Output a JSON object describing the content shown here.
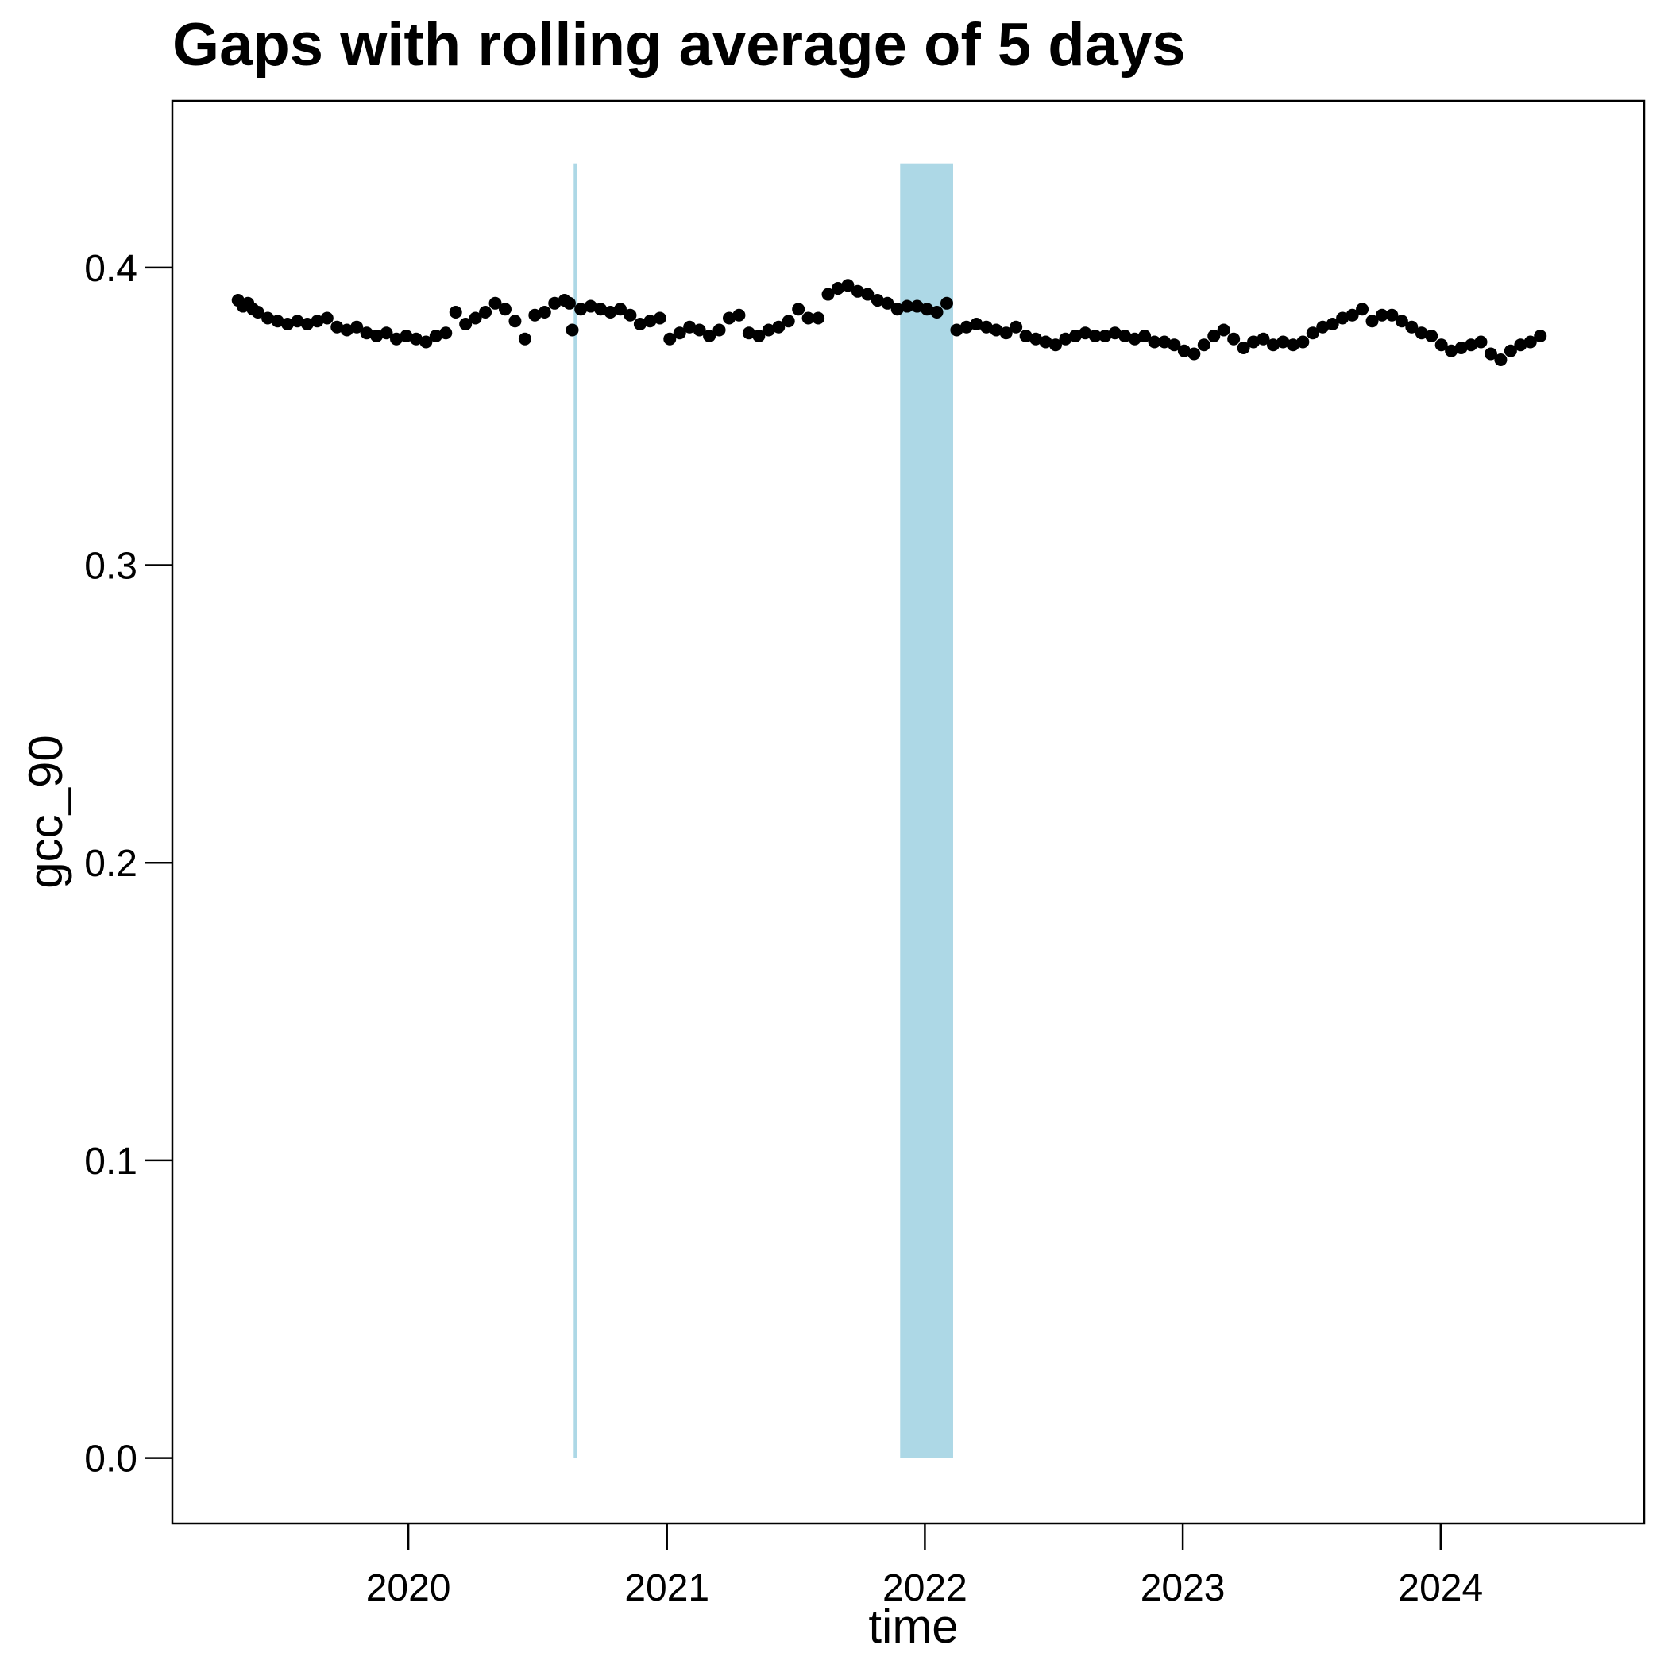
{
  "chart_data": {
    "type": "scatter",
    "title": "Gaps with rolling average of 5 days",
    "xlabel": "time",
    "ylabel": "gcc_90",
    "x_axis_type": "date",
    "xlim": [
      "2019-02-01",
      "2024-10-15"
    ],
    "ylim": [
      -0.022,
      0.456
    ],
    "x_ticks": [
      {
        "value": "2020-01-01",
        "label": "2020"
      },
      {
        "value": "2021-01-01",
        "label": "2021"
      },
      {
        "value": "2022-01-01",
        "label": "2022"
      },
      {
        "value": "2023-01-01",
        "label": "2023"
      },
      {
        "value": "2024-01-01",
        "label": "2024"
      }
    ],
    "y_ticks": [
      {
        "value": 0.0,
        "label": "0.0"
      },
      {
        "value": 0.1,
        "label": "0.1"
      },
      {
        "value": 0.2,
        "label": "0.2"
      },
      {
        "value": 0.3,
        "label": "0.3"
      },
      {
        "value": 0.4,
        "label": "0.4"
      }
    ],
    "grid": false,
    "legend": "none",
    "point_color": "#000000",
    "gap_color": "#add8e6",
    "gaps": [
      {
        "start": "2020-08-22",
        "end": "2020-08-26",
        "ymin": 0.0,
        "ymax": 0.435
      },
      {
        "start": "2021-11-27",
        "end": "2022-02-10",
        "ymin": 0.0,
        "ymax": 0.435
      }
    ],
    "series": [
      {
        "points": [
          [
            "2019-05-05",
            0.389
          ],
          [
            "2019-05-12",
            0.387
          ],
          [
            "2019-05-19",
            0.388
          ],
          [
            "2019-05-26",
            0.386
          ],
          [
            "2019-06-02",
            0.385
          ],
          [
            "2019-06-16",
            0.383
          ],
          [
            "2019-06-30",
            0.382
          ],
          [
            "2019-07-14",
            0.381
          ],
          [
            "2019-07-28",
            0.382
          ],
          [
            "2019-08-11",
            0.381
          ],
          [
            "2019-08-25",
            0.382
          ],
          [
            "2019-09-08",
            0.383
          ],
          [
            "2019-09-22",
            0.38
          ],
          [
            "2019-10-06",
            0.379
          ],
          [
            "2019-10-20",
            0.38
          ],
          [
            "2019-11-03",
            0.378
          ],
          [
            "2019-11-17",
            0.377
          ],
          [
            "2019-12-01",
            0.378
          ],
          [
            "2019-12-15",
            0.376
          ],
          [
            "2019-12-29",
            0.377
          ],
          [
            "2020-01-12",
            0.376
          ],
          [
            "2020-01-26",
            0.375
          ],
          [
            "2020-02-09",
            0.377
          ],
          [
            "2020-02-23",
            0.378
          ],
          [
            "2020-03-08",
            0.385
          ],
          [
            "2020-03-22",
            0.381
          ],
          [
            "2020-04-05",
            0.383
          ],
          [
            "2020-04-19",
            0.385
          ],
          [
            "2020-05-03",
            0.388
          ],
          [
            "2020-05-17",
            0.386
          ],
          [
            "2020-05-31",
            0.382
          ],
          [
            "2020-06-14",
            0.376
          ],
          [
            "2020-06-28",
            0.384
          ],
          [
            "2020-07-12",
            0.385
          ],
          [
            "2020-07-26",
            0.388
          ],
          [
            "2020-08-09",
            0.389
          ],
          [
            "2020-08-16",
            0.388
          ],
          [
            "2020-08-20",
            0.379
          ],
          [
            "2020-09-01",
            0.386
          ],
          [
            "2020-09-15",
            0.387
          ],
          [
            "2020-09-29",
            0.386
          ],
          [
            "2020-10-13",
            0.385
          ],
          [
            "2020-10-27",
            0.386
          ],
          [
            "2020-11-10",
            0.384
          ],
          [
            "2020-11-24",
            0.381
          ],
          [
            "2020-12-08",
            0.382
          ],
          [
            "2020-12-22",
            0.383
          ],
          [
            "2021-01-05",
            0.376
          ],
          [
            "2021-01-19",
            0.378
          ],
          [
            "2021-02-02",
            0.38
          ],
          [
            "2021-02-16",
            0.379
          ],
          [
            "2021-03-02",
            0.377
          ],
          [
            "2021-03-16",
            0.379
          ],
          [
            "2021-03-30",
            0.383
          ],
          [
            "2021-04-13",
            0.384
          ],
          [
            "2021-04-27",
            0.378
          ],
          [
            "2021-05-11",
            0.377
          ],
          [
            "2021-05-25",
            0.379
          ],
          [
            "2021-06-08",
            0.38
          ],
          [
            "2021-06-22",
            0.382
          ],
          [
            "2021-07-06",
            0.386
          ],
          [
            "2021-07-20",
            0.383
          ],
          [
            "2021-08-03",
            0.383
          ],
          [
            "2021-08-17",
            0.391
          ],
          [
            "2021-08-31",
            0.393
          ],
          [
            "2021-09-14",
            0.394
          ],
          [
            "2021-09-28",
            0.392
          ],
          [
            "2021-10-12",
            0.391
          ],
          [
            "2021-10-26",
            0.389
          ],
          [
            "2021-11-09",
            0.388
          ],
          [
            "2021-11-23",
            0.386
          ],
          [
            "2021-12-07",
            0.387
          ],
          [
            "2021-12-21",
            0.387
          ],
          [
            "2022-01-04",
            0.386
          ],
          [
            "2022-01-18",
            0.385
          ],
          [
            "2022-02-01",
            0.388
          ],
          [
            "2022-02-15",
            0.379
          ],
          [
            "2022-03-01",
            0.38
          ],
          [
            "2022-03-15",
            0.381
          ],
          [
            "2022-03-29",
            0.38
          ],
          [
            "2022-04-12",
            0.379
          ],
          [
            "2022-04-26",
            0.378
          ],
          [
            "2022-05-10",
            0.38
          ],
          [
            "2022-05-24",
            0.377
          ],
          [
            "2022-06-07",
            0.376
          ],
          [
            "2022-06-21",
            0.375
          ],
          [
            "2022-07-05",
            0.374
          ],
          [
            "2022-07-19",
            0.376
          ],
          [
            "2022-08-02",
            0.377
          ],
          [
            "2022-08-16",
            0.378
          ],
          [
            "2022-08-30",
            0.377
          ],
          [
            "2022-09-13",
            0.377
          ],
          [
            "2022-09-27",
            0.378
          ],
          [
            "2022-10-11",
            0.377
          ],
          [
            "2022-10-25",
            0.376
          ],
          [
            "2022-11-08",
            0.377
          ],
          [
            "2022-11-22",
            0.375
          ],
          [
            "2022-12-06",
            0.375
          ],
          [
            "2022-12-20",
            0.374
          ],
          [
            "2023-01-03",
            0.372
          ],
          [
            "2023-01-17",
            0.371
          ],
          [
            "2023-01-31",
            0.374
          ],
          [
            "2023-02-14",
            0.377
          ],
          [
            "2023-02-28",
            0.379
          ],
          [
            "2023-03-14",
            0.376
          ],
          [
            "2023-03-28",
            0.373
          ],
          [
            "2023-04-11",
            0.375
          ],
          [
            "2023-04-25",
            0.376
          ],
          [
            "2023-05-09",
            0.374
          ],
          [
            "2023-05-23",
            0.375
          ],
          [
            "2023-06-06",
            0.374
          ],
          [
            "2023-06-20",
            0.375
          ],
          [
            "2023-07-04",
            0.378
          ],
          [
            "2023-07-18",
            0.38
          ],
          [
            "2023-08-01",
            0.381
          ],
          [
            "2023-08-15",
            0.383
          ],
          [
            "2023-08-29",
            0.384
          ],
          [
            "2023-09-12",
            0.386
          ],
          [
            "2023-09-26",
            0.382
          ],
          [
            "2023-10-10",
            0.384
          ],
          [
            "2023-10-24",
            0.384
          ],
          [
            "2023-11-07",
            0.382
          ],
          [
            "2023-11-21",
            0.38
          ],
          [
            "2023-12-05",
            0.378
          ],
          [
            "2023-12-19",
            0.377
          ],
          [
            "2024-01-02",
            0.374
          ],
          [
            "2024-01-16",
            0.372
          ],
          [
            "2024-01-30",
            0.373
          ],
          [
            "2024-02-13",
            0.374
          ],
          [
            "2024-02-27",
            0.375
          ],
          [
            "2024-03-12",
            0.371
          ],
          [
            "2024-03-26",
            0.369
          ],
          [
            "2024-04-09",
            0.372
          ],
          [
            "2024-04-23",
            0.374
          ],
          [
            "2024-05-07",
            0.375
          ],
          [
            "2024-05-21",
            0.377
          ]
        ]
      }
    ]
  }
}
